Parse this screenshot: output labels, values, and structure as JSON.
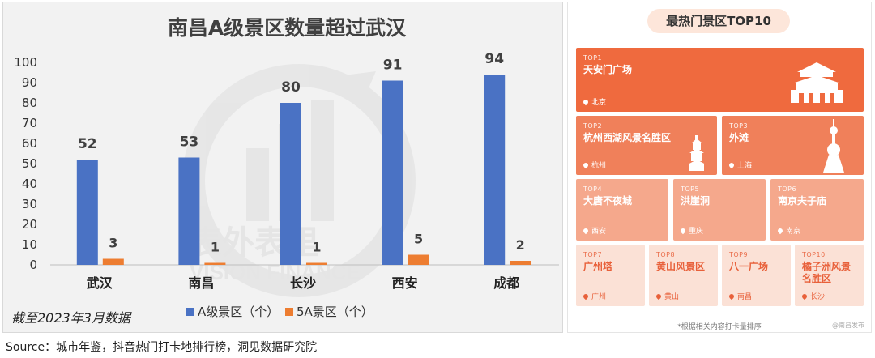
{
  "chart_data": {
    "type": "bar",
    "title": "南昌A级景区数量超过武汉",
    "categories": [
      "武汉",
      "南昌",
      "长沙",
      "西安",
      "成都"
    ],
    "series": [
      {
        "name": "A级景区（个）",
        "values": [
          52,
          53,
          80,
          91,
          94
        ],
        "color": "#4a72c4"
      },
      {
        "name": "5A景区（个）",
        "values": [
          3,
          1,
          1,
          5,
          2
        ],
        "color": "#ed7d31"
      }
    ],
    "ylim": [
      0,
      100
    ],
    "yticks": [
      "0",
      "10",
      "20",
      "30",
      "40",
      "50",
      "60",
      "70",
      "80",
      "90",
      "100"
    ],
    "legend_position": "bottom",
    "grid": false,
    "footnote": "截至2023年3月数据",
    "watermark_text": "表外表里 VISION FINANCE"
  },
  "ranking": {
    "title": "最热门景区TOP10",
    "items": [
      {
        "rank": "TOP1",
        "name": "天安门广场",
        "city": "北京",
        "icon": "tiananmen-icon"
      },
      {
        "rank": "TOP2",
        "name": "杭州西湖风景名胜区",
        "city": "杭州",
        "icon": "pagoda-icon"
      },
      {
        "rank": "TOP3",
        "name": "外滩",
        "city": "上海",
        "icon": "tv-tower-icon"
      },
      {
        "rank": "TOP4",
        "name": "大唐不夜城",
        "city": "西安"
      },
      {
        "rank": "TOP5",
        "name": "洪崖洞",
        "city": "重庆"
      },
      {
        "rank": "TOP6",
        "name": "南京夫子庙",
        "city": "南京"
      },
      {
        "rank": "TOP7",
        "name": "广州塔",
        "city": "广州"
      },
      {
        "rank": "TOP8",
        "name": "黄山风景区",
        "city": "黄山"
      },
      {
        "rank": "TOP9",
        "name": "八一广场",
        "city": "南昌"
      },
      {
        "rank": "TOP10",
        "name": "橘子洲风景名胜区",
        "city": "长沙"
      }
    ],
    "note": "*根据相关内容打卡量排序",
    "watermark": "@南昌发布",
    "colors": {
      "top1": "#ef6a3e",
      "top2_3": "#f0805a",
      "top4_6": "#f5a88c",
      "top7_10": "#fbe1d6"
    }
  },
  "source": "Source：城市年鉴，抖音热门打卡地排行榜，洞见数据研究院"
}
